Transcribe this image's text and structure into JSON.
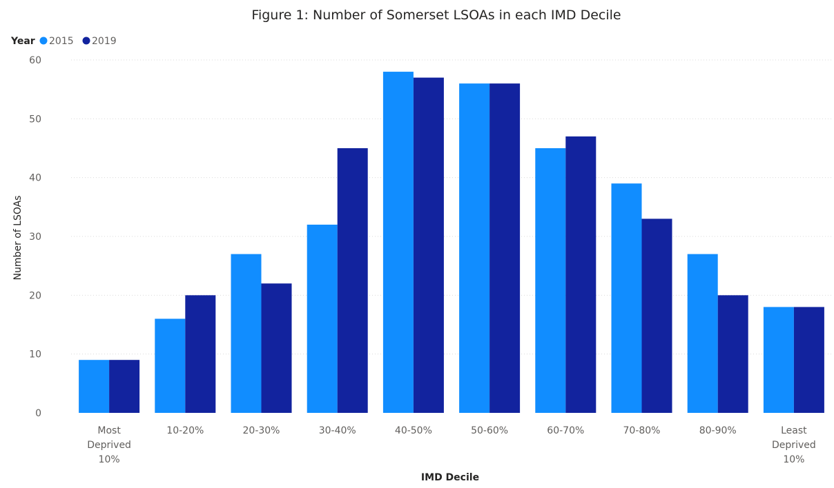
{
  "chart_data": {
    "type": "bar",
    "title": "Figure 1: Number of Somerset LSOAs in each IMD Decile",
    "xlabel": "IMD Decile",
    "ylabel": "Number of LSOAs",
    "ylim": [
      0,
      60
    ],
    "yticks": [
      0,
      10,
      20,
      30,
      40,
      50,
      60
    ],
    "grid": true,
    "legend_title": "Year",
    "legend_position": "top-left",
    "categories": [
      [
        "Most",
        "Deprived",
        "10%"
      ],
      [
        "10-20%"
      ],
      [
        "20-30%"
      ],
      [
        "30-40%"
      ],
      [
        "40-50%"
      ],
      [
        "50-60%"
      ],
      [
        "60-70%"
      ],
      [
        "70-80%"
      ],
      [
        "80-90%"
      ],
      [
        "Least",
        "Deprived",
        "10%"
      ]
    ],
    "series": [
      {
        "name": "2015",
        "color": "#118dff",
        "values": [
          9,
          16,
          27,
          32,
          58,
          56,
          45,
          39,
          27,
          18
        ]
      },
      {
        "name": "2019",
        "color": "#12239e",
        "values": [
          9,
          20,
          22,
          45,
          57,
          56,
          47,
          33,
          20,
          18
        ]
      }
    ]
  },
  "colors": {
    "grid": "#d9d9d9",
    "text": "#252423",
    "axis_text": "#605e5c"
  }
}
